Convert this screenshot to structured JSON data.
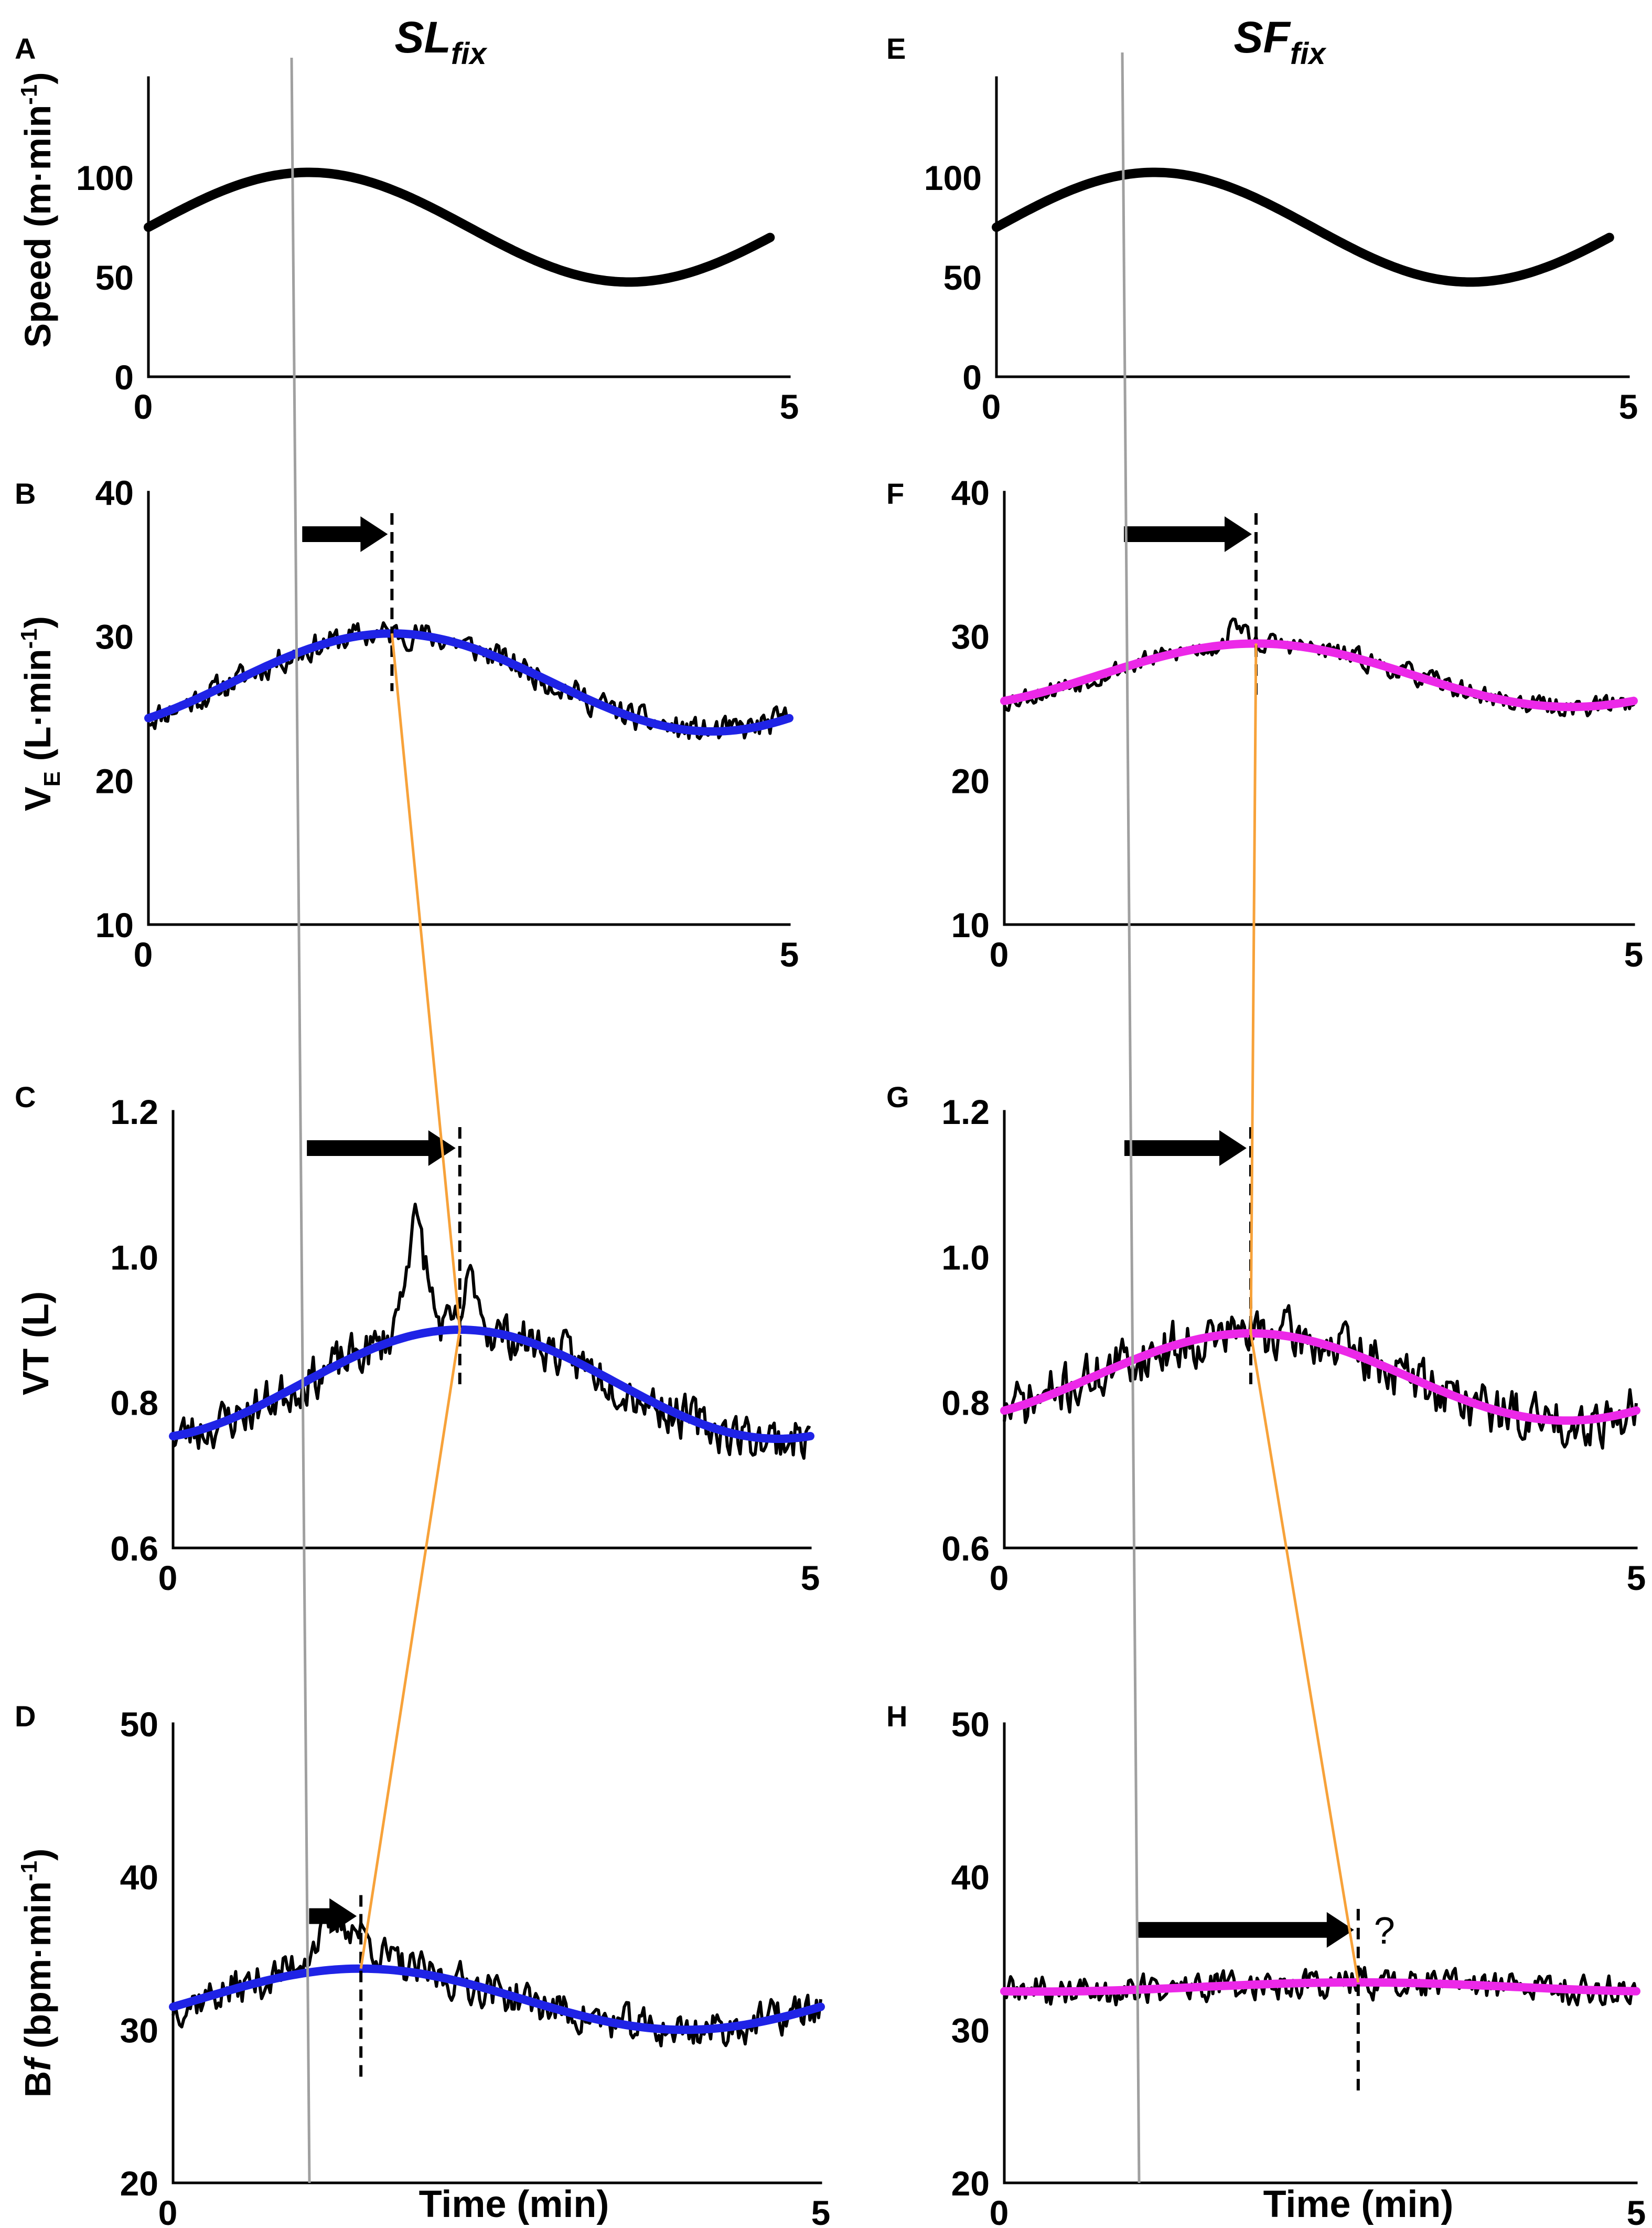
{
  "columns": [
    {
      "title": "SL",
      "subscript": "fix"
    },
    {
      "title": "SF",
      "subscript": "fix"
    }
  ],
  "colors": {
    "data": "#000000",
    "fit_SLfix": "#1f23e6",
    "fit_SFfix": "#ec28e8",
    "lag_connector": "#f7a23a",
    "reference_line": "#a0a0a0"
  },
  "x_axis_label": "Time (min)",
  "annotations": {
    "unknown_lag": "?"
  },
  "y_labels": {
    "speed": {
      "main": "Speed (m·min",
      "sup": "-1",
      "end": ")"
    },
    "ve": {
      "main": "V",
      "sub": "E",
      "rest": " (L·min",
      "sup": "-1",
      "end": ")"
    },
    "vt": {
      "main": "VT (L)"
    },
    "bf": {
      "main": "B",
      "italic": "f",
      "rest": " (bpm·min",
      "sup": "-1",
      "end": ")"
    }
  },
  "chart_data": [
    {
      "panel": "A",
      "type": "line",
      "column": "SLfix",
      "variable": "speed",
      "xlim": [
        0,
        5
      ],
      "ylim": [
        0,
        150
      ],
      "x_ticks": [
        "0",
        "5"
      ],
      "y_ticks": [
        "0",
        "50",
        "100"
      ],
      "series": [
        {
          "values": "speed: 75 + 27.5·sin(2π·t/5), t = 0–4.85 min",
          "peak": {
            "x": 1.25,
            "y": 102.5
          },
          "trough": {
            "x": 3.75,
            "y": 47.5
          }
        }
      ]
    },
    {
      "panel": "B",
      "type": "line",
      "column": "SLfix",
      "variable": "VE",
      "xlim": [
        0,
        5
      ],
      "ylim": [
        10,
        40
      ],
      "x_ticks": [
        "0",
        "5"
      ],
      "y_ticks": [
        "10",
        "20",
        "30",
        "40"
      ],
      "series": [
        {
          "kind": "fit",
          "mean": 26.8,
          "amplitude": 3.4,
          "peak_time": 1.9
        },
        {
          "kind": "measured",
          "noise": 1.2,
          "seed": 11
        }
      ],
      "lag_marker": {
        "arrow_from": 1.2,
        "arrow_to": 1.9
      }
    },
    {
      "panel": "C",
      "type": "line",
      "column": "SLfix",
      "variable": "VT",
      "xlim": [
        0,
        5
      ],
      "ylim": [
        0.6,
        1.2
      ],
      "x_ticks": [
        "0",
        "5"
      ],
      "y_ticks": [
        "0.6",
        "0.8",
        "1.0",
        "1.2"
      ],
      "series": [
        {
          "kind": "fit",
          "mean": 0.825,
          "amplitude": 0.075,
          "peak_time": 2.25
        },
        {
          "kind": "measured",
          "noise": 0.04,
          "seed": 23,
          "bumps": [
            {
              "x": 1.9,
              "y": 0.15,
              "w": 0.12
            },
            {
              "x": 2.35,
              "y": 0.07,
              "w": 0.08
            }
          ]
        }
      ],
      "lag_marker": {
        "arrow_from": 1.05,
        "arrow_to": 2.25
      }
    },
    {
      "panel": "D",
      "type": "line",
      "column": "SLfix",
      "variable": "Bf",
      "xlim": [
        0,
        5
      ],
      "ylim": [
        20,
        50
      ],
      "x_ticks": [
        "0",
        "5"
      ],
      "y_ticks": [
        "20",
        "30",
        "40",
        "50"
      ],
      "series": [
        {
          "kind": "fit",
          "mean": 32.0,
          "amplitude": 2.0,
          "peak_time": 1.45
        },
        {
          "kind": "measured",
          "noise": 1.6,
          "seed": 37,
          "bumps": [
            {
              "x": 1.3,
              "y": 3.0,
              "w": 0.3
            }
          ]
        }
      ],
      "lag_marker": {
        "arrow_from": 1.05,
        "arrow_to": 1.45
      }
    },
    {
      "panel": "E",
      "type": "line",
      "column": "SFfix",
      "variable": "speed",
      "xlim": [
        0,
        5
      ],
      "ylim": [
        0,
        150
      ],
      "x_ticks": [
        "0",
        "5"
      ],
      "y_ticks": [
        "0",
        "50",
        "100"
      ],
      "series": [
        {
          "values": "speed: 75 + 27.5·sin(2π·t/5), t = 0–4.85 min",
          "peak": {
            "x": 1.25,
            "y": 102.5
          },
          "trough": {
            "x": 3.75,
            "y": 47.5
          }
        }
      ]
    },
    {
      "panel": "F",
      "type": "line",
      "column": "SFfix",
      "variable": "VE",
      "xlim": [
        0,
        5
      ],
      "ylim": [
        10,
        40
      ],
      "x_ticks": [
        "0",
        "5"
      ],
      "y_ticks": [
        "10",
        "20",
        "30",
        "40"
      ],
      "series": [
        {
          "kind": "fit",
          "mean": 27.3,
          "amplitude": 2.2,
          "peak_time": 2.0
        },
        {
          "kind": "measured",
          "noise": 0.9,
          "seed": 53,
          "bumps": [
            {
              "x": 1.85,
              "y": 1.5,
              "w": 0.08
            }
          ]
        }
      ],
      "lag_marker": {
        "arrow_from": 0.95,
        "arrow_to": 2.0
      }
    },
    {
      "panel": "G",
      "type": "line",
      "column": "SFfix",
      "variable": "VT",
      "xlim": [
        0,
        5
      ],
      "ylim": [
        0.6,
        1.2
      ],
      "x_ticks": [
        "0",
        "5"
      ],
      "y_ticks": [
        "0.6",
        "0.8",
        "1.0",
        "1.2"
      ],
      "series": [
        {
          "kind": "fit",
          "mean": 0.835,
          "amplitude": 0.06,
          "peak_time": 1.95
        },
        {
          "kind": "measured",
          "noise": 0.045,
          "seed": 71
        },
        {
          "kind": "fit_unused"
        }
      ],
      "lag_marker": {
        "arrow_from": 0.95,
        "arrow_to": 1.95
      }
    },
    {
      "panel": "H",
      "type": "line",
      "column": "SFfix",
      "variable": "Bf",
      "xlim": [
        0,
        5
      ],
      "ylim": [
        20,
        50
      ],
      "x_ticks": [
        "0",
        "5"
      ],
      "y_ticks": [
        "20",
        "30",
        "40",
        "50"
      ],
      "series": [
        {
          "kind": "fit",
          "mean": 32.8,
          "amplitude": 0.3,
          "peak_time": 2.8
        },
        {
          "kind": "measured",
          "noise": 1.3,
          "seed": 89
        }
      ],
      "lag_marker": {
        "arrow_from": 1.05,
        "arrow_to": 2.8
      }
    }
  ]
}
